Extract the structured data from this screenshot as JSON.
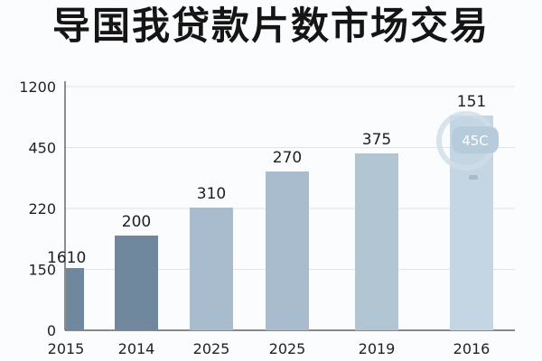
{
  "chart_data": {
    "type": "bar",
    "title": "导国我贷款片数市场交易",
    "xlabel": "",
    "ylabel": "",
    "categories": [
      "2015",
      "2014",
      "2025",
      "2025",
      "2019",
      "2016"
    ],
    "values": [
      1610,
      200,
      310,
      270,
      375,
      151
    ],
    "ytick_labels": [
      "0",
      "150",
      "220",
      "450",
      "1200"
    ],
    "grid": true,
    "legend": "none",
    "annotations": [
      {
        "category_index": 5,
        "text": "45C"
      }
    ],
    "bar_colors": [
      "#6f889d",
      "#6f889d",
      "#a9bccd",
      "#a9bccd",
      "#b2c5d3",
      "#c4d6e3"
    ],
    "badge_color": "#b7ccda"
  }
}
